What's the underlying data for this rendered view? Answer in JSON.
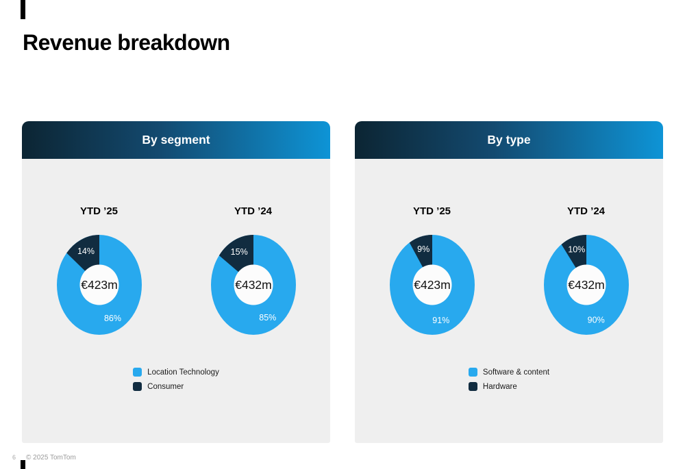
{
  "page": {
    "title": "Revenue breakdown",
    "footer": {
      "page_number": "6",
      "copyright": "© 2025 TomTom"
    }
  },
  "colors": {
    "blue": "#28a9ee",
    "navy": "#112c40",
    "header_gradient_start": "#0c2533",
    "header_gradient_end": "#0e94d6",
    "card_bg": "#efefef",
    "hole": "#fcfcfc",
    "pct_label": "#ffffff",
    "center_label": "#111111"
  },
  "panels": [
    {
      "title": "By segment",
      "legend": [
        {
          "label": "Location Technology",
          "color": "#28a9ee"
        },
        {
          "label": "Consumer",
          "color": "#112c40"
        }
      ],
      "charts": [
        {
          "title": "YTD ’25",
          "center_label": "€423m",
          "slices": [
            {
              "name": "Location Technology",
              "pct": 86
            },
            {
              "name": "Consumer",
              "pct": 14
            }
          ]
        },
        {
          "title": "YTD ’24",
          "center_label": "€432m",
          "slices": [
            {
              "name": "Location Technology",
              "pct": 85
            },
            {
              "name": "Consumer",
              "pct": 15
            }
          ]
        }
      ]
    },
    {
      "title": "By type",
      "legend": [
        {
          "label": "Software & content",
          "color": "#28a9ee"
        },
        {
          "label": "Hardware",
          "color": "#112c40"
        }
      ],
      "charts": [
        {
          "title": "YTD ’25",
          "center_label": "€423m",
          "slices": [
            {
              "name": "Software & content",
              "pct": 91
            },
            {
              "name": "Hardware",
              "pct": 9
            }
          ]
        },
        {
          "title": "YTD ’24",
          "center_label": "€432m",
          "slices": [
            {
              "name": "Software & content",
              "pct": 90
            },
            {
              "name": "Hardware",
              "pct": 10
            }
          ]
        }
      ]
    }
  ],
  "chart_data": [
    {
      "type": "pie",
      "subtype": "donut",
      "title": "By segment — YTD ’25",
      "center_label": "€423m",
      "labels": [
        "Location Technology",
        "Consumer"
      ],
      "values": [
        86,
        14
      ],
      "unit": "%",
      "legend_position": "bottom"
    },
    {
      "type": "pie",
      "subtype": "donut",
      "title": "By segment — YTD ’24",
      "center_label": "€432m",
      "labels": [
        "Location Technology",
        "Consumer"
      ],
      "values": [
        85,
        15
      ],
      "unit": "%",
      "legend_position": "bottom"
    },
    {
      "type": "pie",
      "subtype": "donut",
      "title": "By type — YTD ’25",
      "center_label": "€423m",
      "labels": [
        "Software & content",
        "Hardware"
      ],
      "values": [
        91,
        9
      ],
      "unit": "%",
      "legend_position": "bottom"
    },
    {
      "type": "pie",
      "subtype": "donut",
      "title": "By type — YTD ’24",
      "center_label": "€432m",
      "labels": [
        "Software & content",
        "Hardware"
      ],
      "values": [
        90,
        10
      ],
      "unit": "%",
      "legend_position": "bottom"
    }
  ]
}
